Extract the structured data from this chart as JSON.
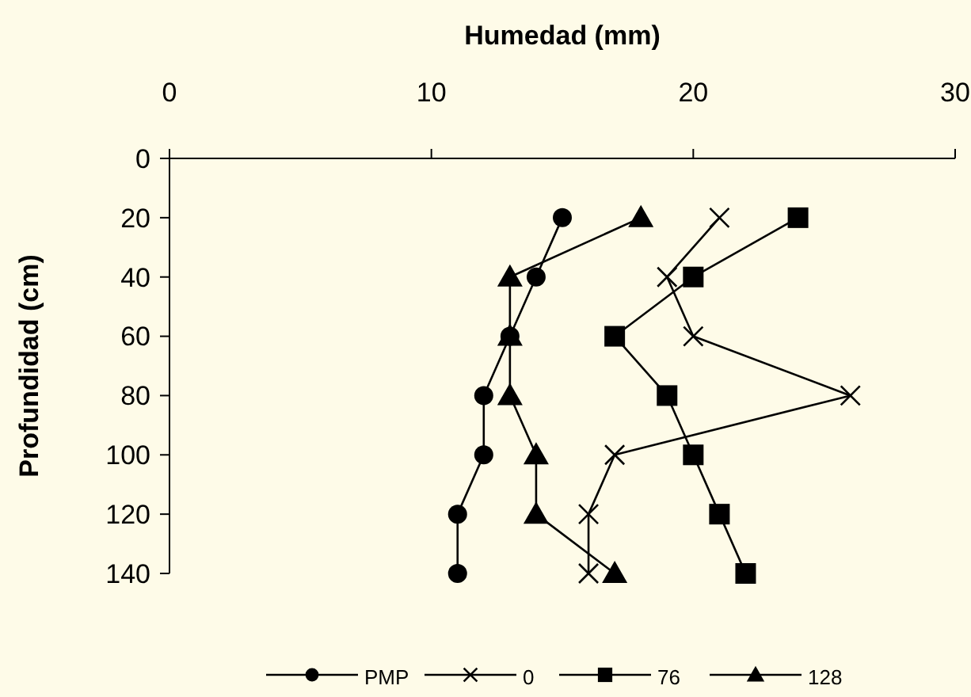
{
  "chart_data": {
    "type": "line",
    "xlabel": "Humedad (mm)",
    "ylabel": "Profundidad (cm)",
    "xlim": [
      0,
      30
    ],
    "xticks": [
      0,
      10,
      20,
      30
    ],
    "ylim": [
      140,
      0
    ],
    "yticks": [
      0,
      20,
      40,
      60,
      80,
      100,
      120,
      140
    ],
    "legend": "bottom",
    "grid": false,
    "series": [
      {
        "name": "PMP",
        "color": "#000000",
        "marker": "circle",
        "x": [
          15,
          14,
          13,
          12,
          12,
          11,
          11
        ],
        "values": [
          20,
          40,
          60,
          80,
          100,
          120,
          140
        ]
      },
      {
        "name": "0",
        "color": "#000000",
        "marker": "cross",
        "x": [
          21,
          19,
          20,
          26,
          17,
          16,
          16
        ],
        "values": [
          20,
          40,
          60,
          80,
          100,
          120,
          140
        ]
      },
      {
        "name": "76",
        "color": "#000000",
        "marker": "square",
        "x": [
          24,
          20,
          17,
          19,
          20,
          21,
          22
        ],
        "values": [
          20,
          40,
          60,
          80,
          100,
          120,
          140
        ]
      },
      {
        "name": "128",
        "color": "#000000",
        "marker": "triangle",
        "x": [
          18,
          13,
          13,
          13,
          14,
          14,
          17
        ],
        "values": [
          20,
          40,
          60,
          80,
          100,
          120,
          140
        ]
      }
    ]
  }
}
